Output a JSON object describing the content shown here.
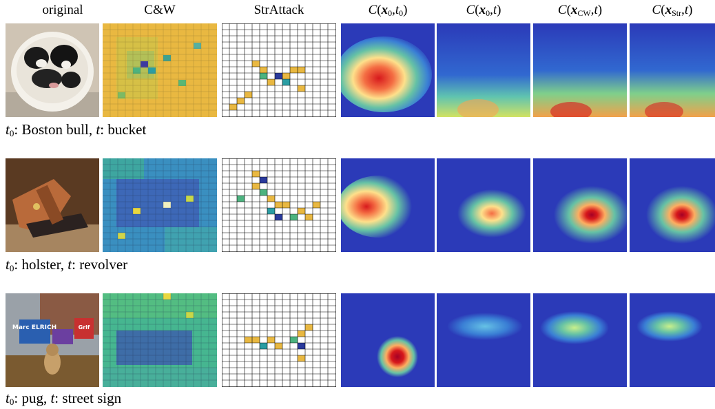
{
  "headers": {
    "original": "original",
    "cw": "C&W",
    "strattack": "StrAttack",
    "c_x0_t0": "C(x0,t0)",
    "c_x0_t": "C(x0,t)",
    "c_xcw_t": "C(xCW,t)",
    "c_xstr_t": "C(xStr,t)"
  },
  "rows": [
    {
      "t0": "Boston bull",
      "t": "bucket"
    },
    {
      "t0": "holster",
      "t": "revolver"
    },
    {
      "t0": "pug",
      "t": "street sign"
    }
  ],
  "caption_parts": {
    "t0_prefix": "t",
    "t0_sub": "0",
    "sep": ": ",
    "t_label": "t",
    "comma": ", "
  },
  "sign_texts": {
    "sign1": "Marc ELRICH",
    "sign2": "Grif"
  },
  "colors": {
    "heat_hot": "#d7191c",
    "heat_cold": "#2b3ab8",
    "sparse_yellow": "#f0c040",
    "grid_line": "#000000"
  }
}
